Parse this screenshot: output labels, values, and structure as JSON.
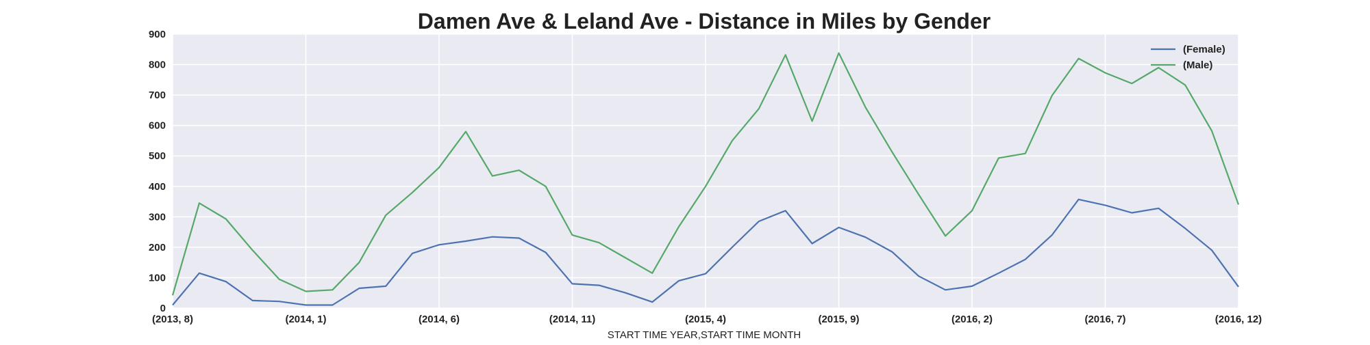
{
  "chart_data": {
    "type": "line",
    "title": "Damen Ave & Leland Ave - Distance in Miles by Gender",
    "xlabel": "START TIME YEAR,START TIME MONTH",
    "ylabel": "",
    "ylim": [
      0,
      900
    ],
    "yticks": [
      "0",
      "100",
      "200",
      "300",
      "400",
      "500",
      "600",
      "700",
      "800",
      "900"
    ],
    "x": [
      "(2013, 8)",
      "(2013, 9)",
      "(2013, 10)",
      "(2013, 11)",
      "(2013, 12)",
      "(2014, 1)",
      "(2014, 2)",
      "(2014, 3)",
      "(2014, 4)",
      "(2014, 5)",
      "(2014, 6)",
      "(2014, 7)",
      "(2014, 8)",
      "(2014, 9)",
      "(2014, 10)",
      "(2014, 11)",
      "(2014, 12)",
      "(2015, 1)",
      "(2015, 2)",
      "(2015, 3)",
      "(2015, 4)",
      "(2015, 5)",
      "(2015, 6)",
      "(2015, 7)",
      "(2015, 8)",
      "(2015, 9)",
      "(2015, 10)",
      "(2015, 11)",
      "(2015, 12)",
      "(2016, 1)",
      "(2016, 2)",
      "(2016, 3)",
      "(2016, 4)",
      "(2016, 5)",
      "(2016, 6)",
      "(2016, 7)",
      "(2016, 8)",
      "(2016, 9)",
      "(2016, 10)",
      "(2016, 11)",
      "(2016, 12)"
    ],
    "xtick_labels": [
      "(2013, 8)",
      "(2014, 1)",
      "(2014, 6)",
      "(2014, 11)",
      "(2015, 4)",
      "(2015, 9)",
      "(2016, 2)",
      "(2016, 7)",
      "(2016, 12)"
    ],
    "series": [
      {
        "name": "(Female)",
        "color": "#4c72b0",
        "values": [
          10,
          115,
          87,
          25,
          22,
          10,
          10,
          65,
          72,
          180,
          208,
          220,
          234,
          230,
          183,
          80,
          75,
          50,
          20,
          90,
          113,
          200,
          285,
          320,
          212,
          265,
          233,
          185,
          105,
          60,
          72,
          115,
          160,
          240,
          357,
          338,
          313,
          328,
          262,
          190,
          70
        ]
      },
      {
        "name": "(Male)",
        "color": "#55a868",
        "values": [
          42,
          345,
          293,
          190,
          95,
          55,
          60,
          150,
          305,
          380,
          462,
          580,
          434,
          453,
          400,
          240,
          215,
          165,
          115,
          268,
          400,
          550,
          655,
          832,
          614,
          838,
          660,
          513,
          373,
          237,
          320,
          493,
          508,
          698,
          820,
          773,
          738,
          790,
          733,
          582,
          340
        ]
      }
    ],
    "grid": true,
    "legend": "top-right"
  }
}
